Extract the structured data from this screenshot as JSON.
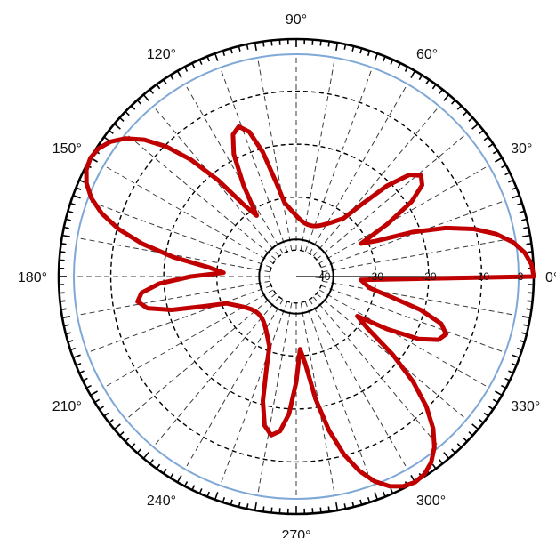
{
  "chart_data": {
    "type": "line",
    "title": "",
    "xlabel": "",
    "ylabel": "",
    "angle_labels": [
      "0°",
      "30°",
      "60°",
      "90°",
      "120°",
      "150°",
      "180°",
      "210°",
      "240°",
      "270°",
      "300°",
      "330°"
    ],
    "radial_labels": [
      "-40",
      "-30",
      "-20",
      "-10",
      "-3"
    ],
    "radial_values": [
      -40,
      -30,
      -20,
      -10,
      -3
    ],
    "r_range": [
      -45,
      0
    ],
    "grid": true,
    "spoke_step_deg": 10,
    "series": [
      {
        "angle_deg": [
          0,
          3,
          6,
          9,
          12,
          15,
          18,
          21,
          24,
          27,
          30,
          33,
          36,
          39,
          42,
          45,
          48,
          51,
          54,
          57,
          60,
          63,
          66,
          69,
          72,
          75,
          78,
          81,
          84,
          87,
          90,
          93,
          96,
          99,
          102,
          105,
          108,
          111,
          114,
          117,
          120,
          123,
          126,
          129,
          132,
          135,
          138,
          141,
          144,
          147,
          150,
          153,
          156,
          159,
          162,
          165,
          168,
          171,
          174,
          177,
          180,
          183,
          186,
          189,
          192,
          195,
          198,
          201,
          204,
          207,
          210,
          213,
          216,
          219,
          222,
          225,
          228,
          231,
          234,
          237,
          240,
          243,
          246,
          249,
          252,
          255,
          258,
          261,
          264,
          267,
          270,
          273,
          276,
          279,
          282,
          285,
          288,
          291,
          294,
          297,
          300,
          303,
          306,
          309,
          312,
          315,
          318,
          321,
          324,
          327,
          330,
          333,
          336,
          339,
          342,
          345,
          348,
          351,
          354,
          357,
          360
        ],
        "db": [
          -0.16,
          -0.54,
          -1.66,
          -3.57,
          -6.39,
          -10.27,
          -15.32,
          -21.55,
          -28.39,
          -31.27,
          -25.09,
          -19.05,
          -15.64,
          -14.68,
          -16.26,
          -20.7,
          -26.83,
          -30.86,
          -31.93,
          -32.8,
          -33.5,
          -34.06,
          -34.48,
          -34.77,
          -34.94,
          -34.99,
          -34.94,
          -34.77,
          -34.48,
          -34.06,
          -33.5,
          -32.8,
          -31.93,
          -30.86,
          -26.83,
          -20.7,
          -16.26,
          -14.68,
          -15.64,
          -19.05,
          -25.09,
          -31.27,
          -28.39,
          -21.55,
          -15.32,
          -10.27,
          -6.39,
          -3.57,
          -1.66,
          -0.54,
          -0.16,
          -0.54,
          -1.66,
          -3.57,
          -6.39,
          -10.27,
          -15.32,
          -21.55,
          -28.39,
          -31.27,
          -25.09,
          -19.05,
          -15.64,
          -14.68,
          -16.26,
          -20.7,
          -26.83,
          -30.86,
          -31.93,
          -32.8,
          -33.5,
          -34.06,
          -34.48,
          -34.77,
          -34.94,
          -34.99,
          -34.94,
          -34.77,
          -34.48,
          -34.06,
          -33.5,
          -32.8,
          -31.93,
          -30.86,
          -26.83,
          -20.7,
          -16.26,
          -14.68,
          -15.64,
          -19.05,
          -25.09,
          -31.27,
          -28.39,
          -21.55,
          -15.32,
          -10.27,
          -6.39,
          -3.57,
          -1.66,
          -0.54,
          -0.16,
          -0.54,
          -1.66,
          -3.57,
          -6.39,
          -10.27,
          -15.32,
          -21.55,
          -28.39,
          -31.27,
          -25.09,
          -19.05,
          -15.64,
          -14.68,
          -16.26,
          -20.7,
          -26.83,
          -30.86,
          -31.93,
          -32.8,
          -0.16
        ]
      }
    ]
  },
  "colors": {
    "pattern": "#c00000",
    "outer_circle": "#7fa8d6",
    "ring": "#000000",
    "grid": "#3a3a3a"
  }
}
